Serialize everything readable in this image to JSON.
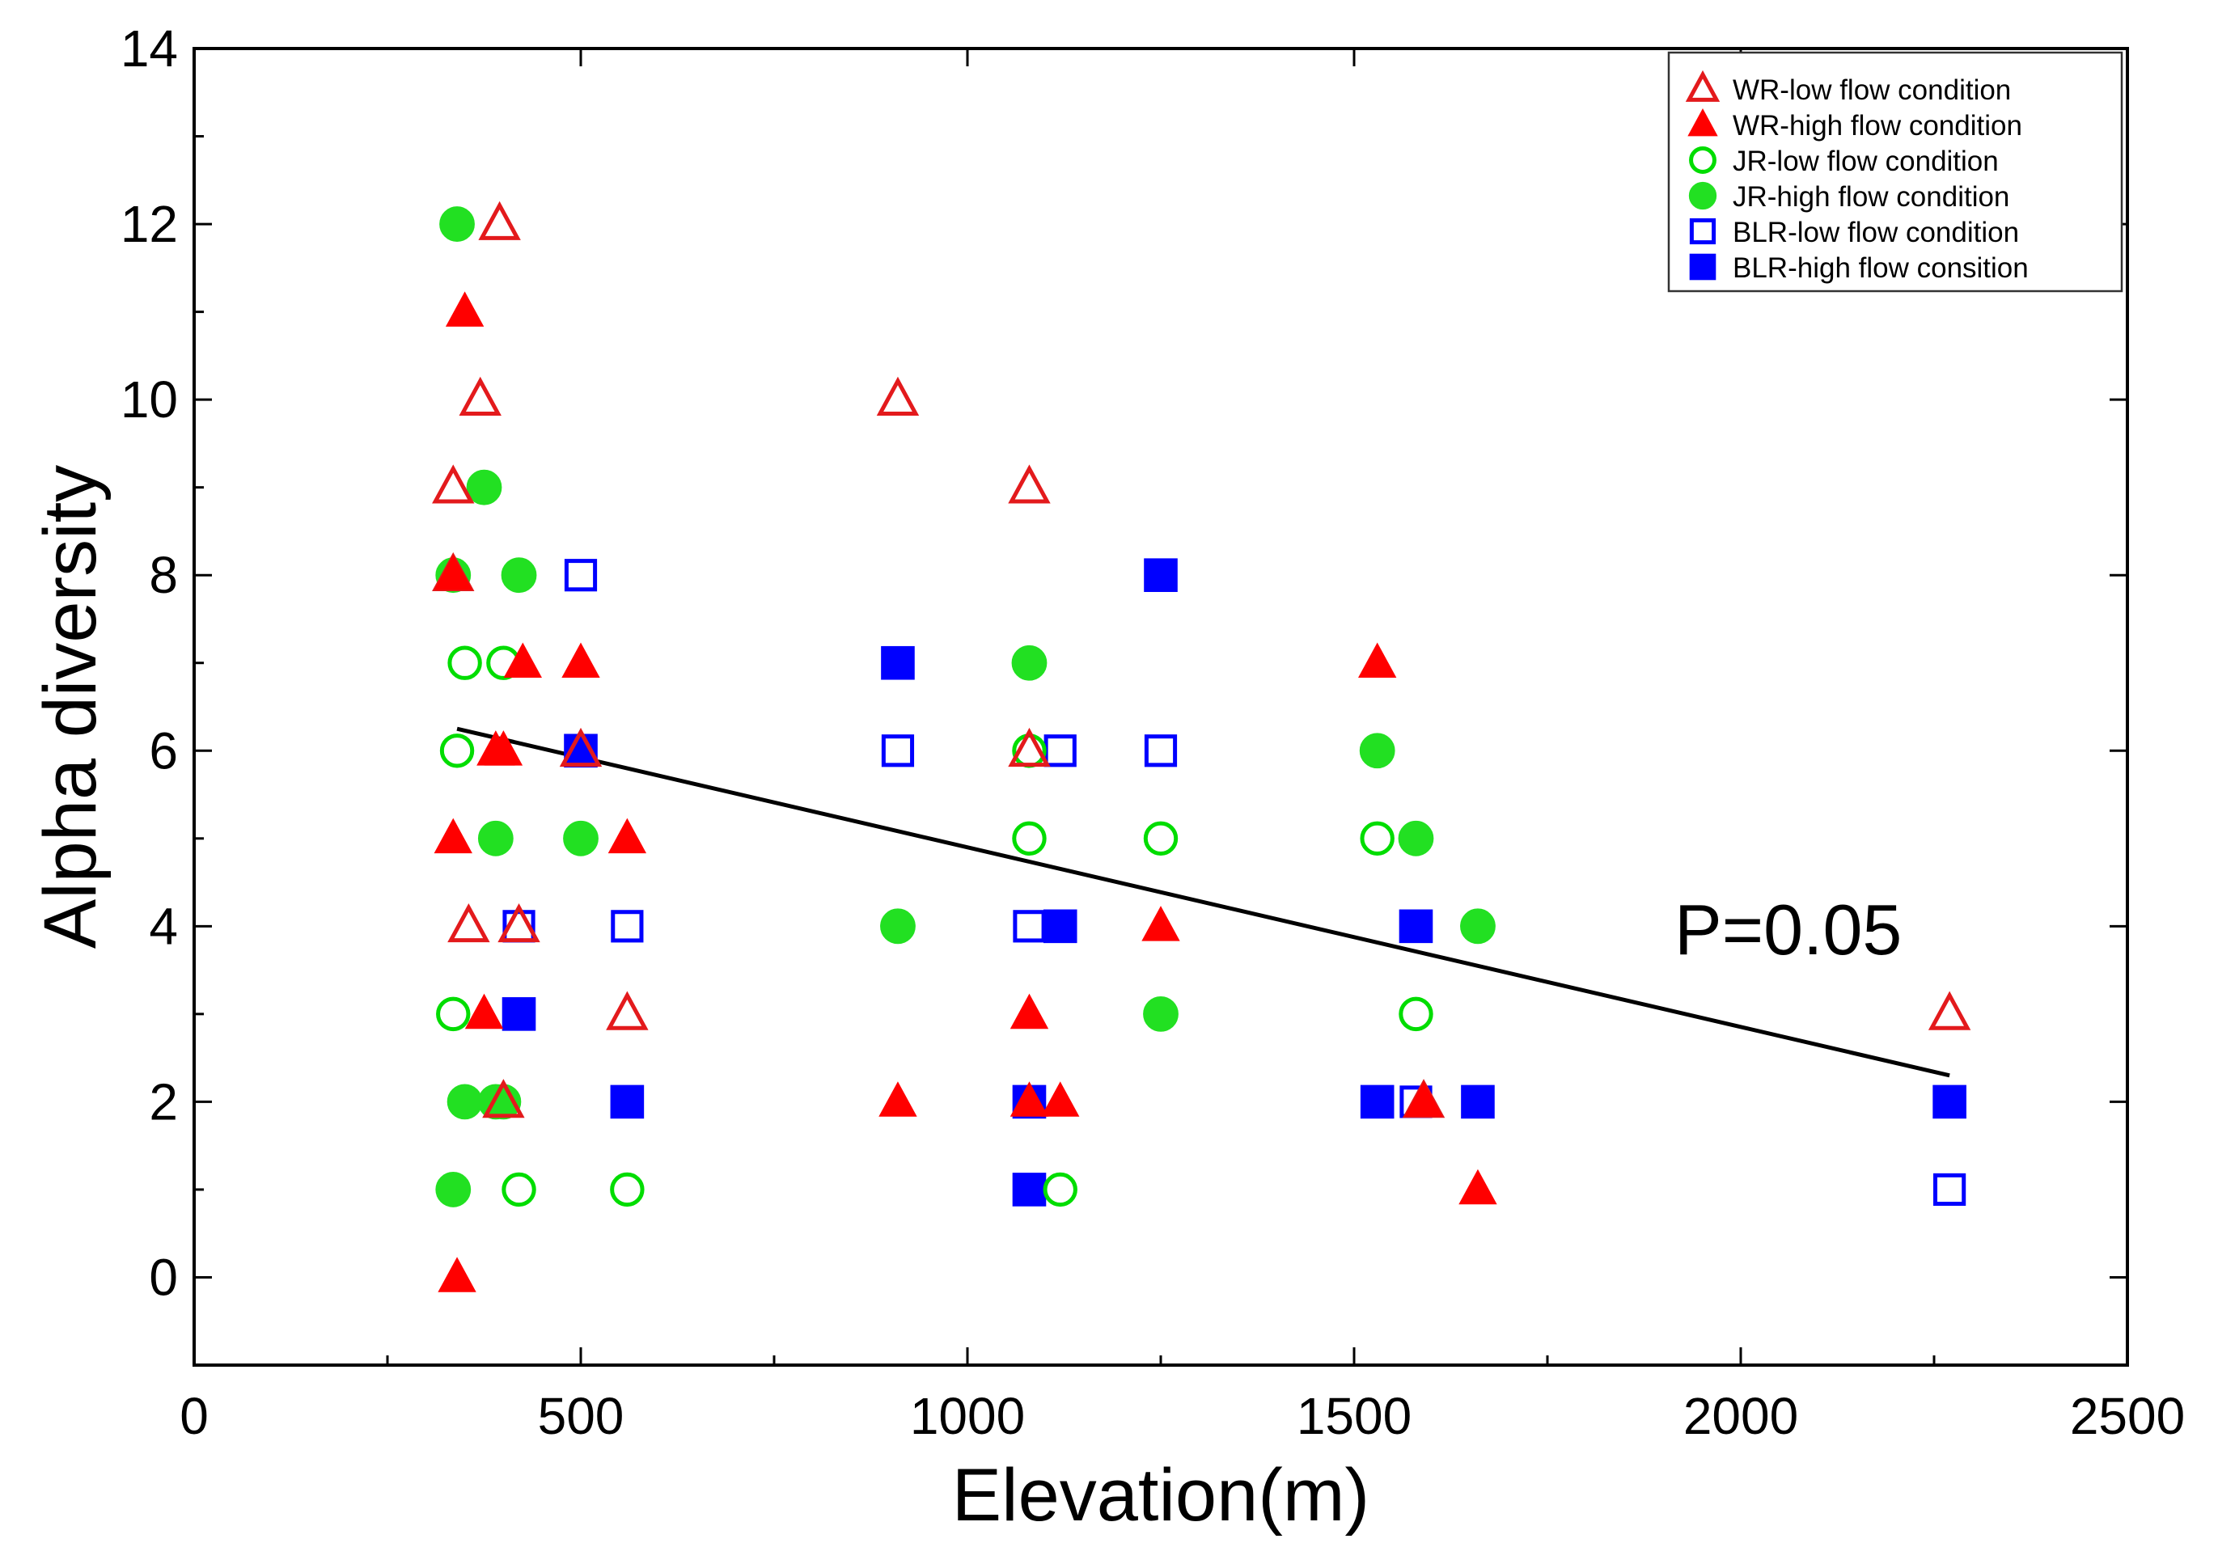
{
  "chart_data": {
    "type": "scatter",
    "title": "",
    "xlabel": "Elevation(m)",
    "ylabel": "Alpha diversity",
    "xlim": [
      0,
      2500
    ],
    "ylim": [
      -1,
      14
    ],
    "xticks": [
      0,
      500,
      1000,
      1500,
      2000,
      2500
    ],
    "yticks": [
      0,
      2,
      4,
      6,
      8,
      10,
      12,
      14
    ],
    "grid": false,
    "legend_position": "top-right",
    "annotation": "P=0.05",
    "trendline": {
      "x": [
        340,
        2270
      ],
      "y": [
        6.25,
        2.3
      ]
    },
    "series": [
      {
        "name": "WR-low flow condition",
        "marker": "triangle-open",
        "color": "#e31a1c",
        "points": [
          [
            395,
            12
          ],
          [
            370,
            10
          ],
          [
            335,
            9
          ],
          [
            910,
            10
          ],
          [
            1080,
            9
          ],
          [
            355,
            4
          ],
          [
            560,
            3
          ],
          [
            2270,
            3
          ],
          [
            335,
            8
          ],
          [
            420,
            4
          ],
          [
            500,
            6
          ],
          [
            1080,
            6
          ],
          [
            400,
            2
          ],
          [
            1590,
            2
          ]
        ]
      },
      {
        "name": "WR-high flow condition",
        "marker": "triangle-filled",
        "color": "#ff0000",
        "points": [
          [
            350,
            11
          ],
          [
            425,
            7
          ],
          [
            500,
            7
          ],
          [
            390,
            6
          ],
          [
            400,
            6
          ],
          [
            335,
            5
          ],
          [
            560,
            5
          ],
          [
            375,
            3
          ],
          [
            340,
            0
          ],
          [
            910,
            2
          ],
          [
            1080,
            3
          ],
          [
            1080,
            2
          ],
          [
            1120,
            2
          ],
          [
            1250,
            4
          ],
          [
            1530,
            7
          ],
          [
            1660,
            1
          ],
          [
            335,
            8
          ],
          [
            1590,
            2
          ]
        ]
      },
      {
        "name": "JR-low flow condition",
        "marker": "circle-open",
        "color": "#00dd00",
        "points": [
          [
            350,
            7
          ],
          [
            400,
            7
          ],
          [
            340,
            6
          ],
          [
            335,
            3
          ],
          [
            420,
            1
          ],
          [
            560,
            1
          ],
          [
            1080,
            6
          ],
          [
            1080,
            5
          ],
          [
            1120,
            1
          ],
          [
            1250,
            5
          ],
          [
            1530,
            5
          ],
          [
            1580,
            3
          ]
        ]
      },
      {
        "name": "JR-high flow condition",
        "marker": "circle-filled",
        "color": "#22e022",
        "points": [
          [
            340,
            12
          ],
          [
            375,
            9
          ],
          [
            335,
            8
          ],
          [
            420,
            8
          ],
          [
            390,
            5
          ],
          [
            500,
            5
          ],
          [
            350,
            2
          ],
          [
            390,
            2
          ],
          [
            400,
            2
          ],
          [
            335,
            1
          ],
          [
            910,
            4
          ],
          [
            1080,
            7
          ],
          [
            1250,
            3
          ],
          [
            1530,
            6
          ],
          [
            1580,
            5
          ],
          [
            1660,
            4
          ]
        ]
      },
      {
        "name": "BLR-low flow condition",
        "marker": "square-open",
        "color": "#0000ff",
        "points": [
          [
            500,
            8
          ],
          [
            420,
            4
          ],
          [
            560,
            4
          ],
          [
            910,
            6
          ],
          [
            1120,
            6
          ],
          [
            1080,
            4
          ],
          [
            1250,
            6
          ],
          [
            1580,
            2
          ],
          [
            2270,
            1
          ]
        ]
      },
      {
        "name": "BLR-high flow consition",
        "marker": "square-filled",
        "color": "#0000ff",
        "points": [
          [
            500,
            6
          ],
          [
            420,
            3
          ],
          [
            560,
            2
          ],
          [
            910,
            7
          ],
          [
            1080,
            2
          ],
          [
            1080,
            1
          ],
          [
            1120,
            4
          ],
          [
            1250,
            8
          ],
          [
            1530,
            2
          ],
          [
            1580,
            4
          ],
          [
            1660,
            2
          ],
          [
            2270,
            2
          ]
        ]
      }
    ]
  }
}
